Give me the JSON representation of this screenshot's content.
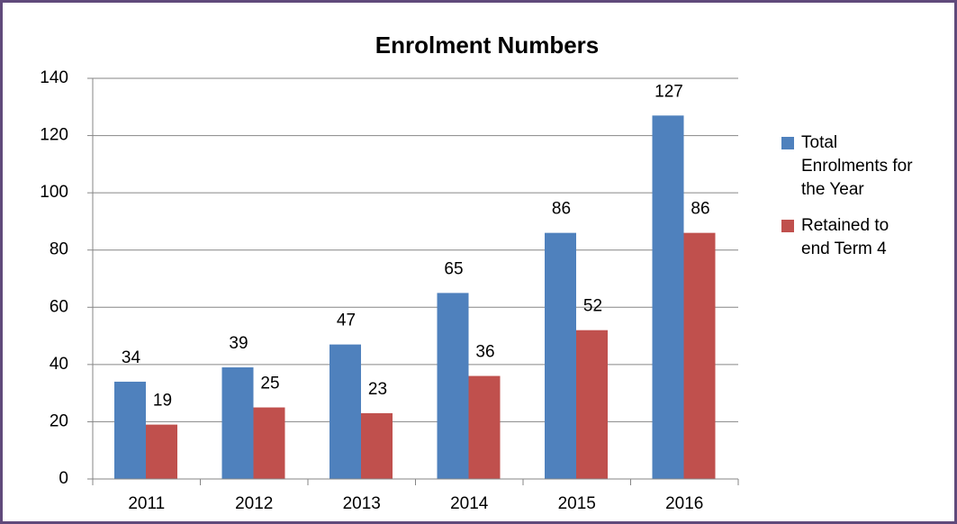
{
  "chart_data": {
    "type": "bar",
    "title": "Enrolment Numbers",
    "categories": [
      "2011",
      "2012",
      "2013",
      "2014",
      "2015",
      "2016"
    ],
    "series": [
      {
        "name": "Total Enrolments for the Year",
        "color": "#4f81bd",
        "values": [
          34,
          39,
          47,
          65,
          86,
          127
        ]
      },
      {
        "name": "Retained to end Term 4",
        "color": "#c0504d",
        "values": [
          19,
          25,
          23,
          36,
          52,
          86
        ]
      }
    ],
    "ylim": [
      0,
      140
    ],
    "yticks": [
      0,
      20,
      40,
      60,
      80,
      100,
      120,
      140
    ],
    "grid": true,
    "legend": "right"
  }
}
